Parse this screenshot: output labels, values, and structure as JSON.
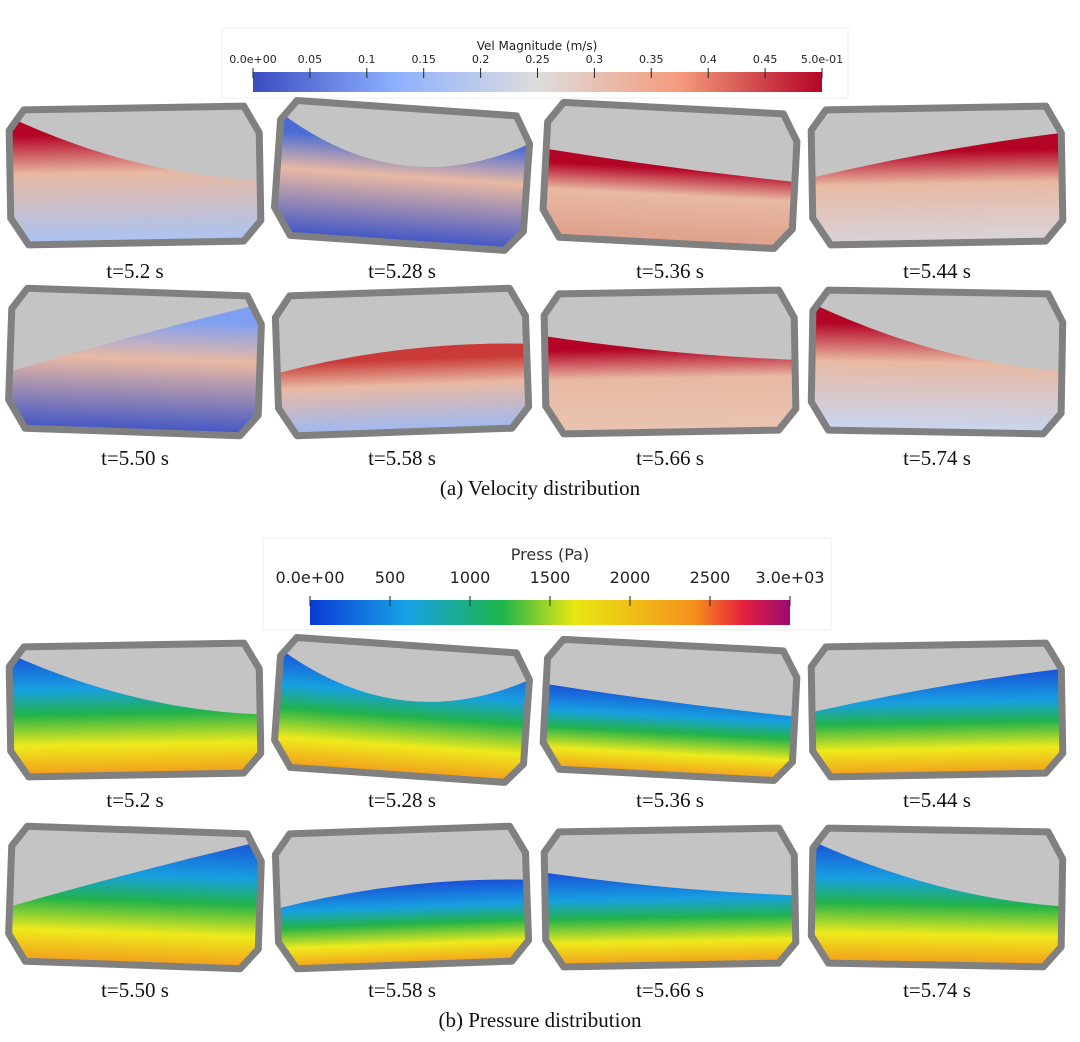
{
  "velocity": {
    "colorbar": {
      "title": "Vel Magnitude (m/s)",
      "ticks": [
        {
          "value": 0,
          "label": "0.0e+00"
        },
        0.05,
        0.1,
        0.15,
        0.2,
        0.25,
        0.3,
        0.35,
        0.4,
        0.45,
        {
          "value": 0.5,
          "label": "5.0e-01"
        }
      ]
    },
    "panels": [
      "t=5.2 s",
      "t=5.28 s",
      "t=5.36 s",
      "t=5.44 s",
      "t=5.50 s",
      "t=5.58 s",
      "t=5.66 s",
      "t=5.74 s"
    ],
    "caption": "(a) Velocity distribution"
  },
  "pressure": {
    "colorbar": {
      "title": "Press (Pa)",
      "ticks": [
        {
          "value": 0,
          "label": "0.0e+00"
        },
        500,
        1000,
        1500,
        2000,
        2500,
        {
          "value": 3000,
          "label": "3.0e+03"
        }
      ]
    },
    "panels": [
      "t=5.2 s",
      "t=5.28 s",
      "t=5.36 s",
      "t=5.44 s",
      "t=5.50 s",
      "t=5.58 s",
      "t=5.66 s",
      "t=5.74 s"
    ],
    "caption": "(b) Pressure distribution"
  }
}
